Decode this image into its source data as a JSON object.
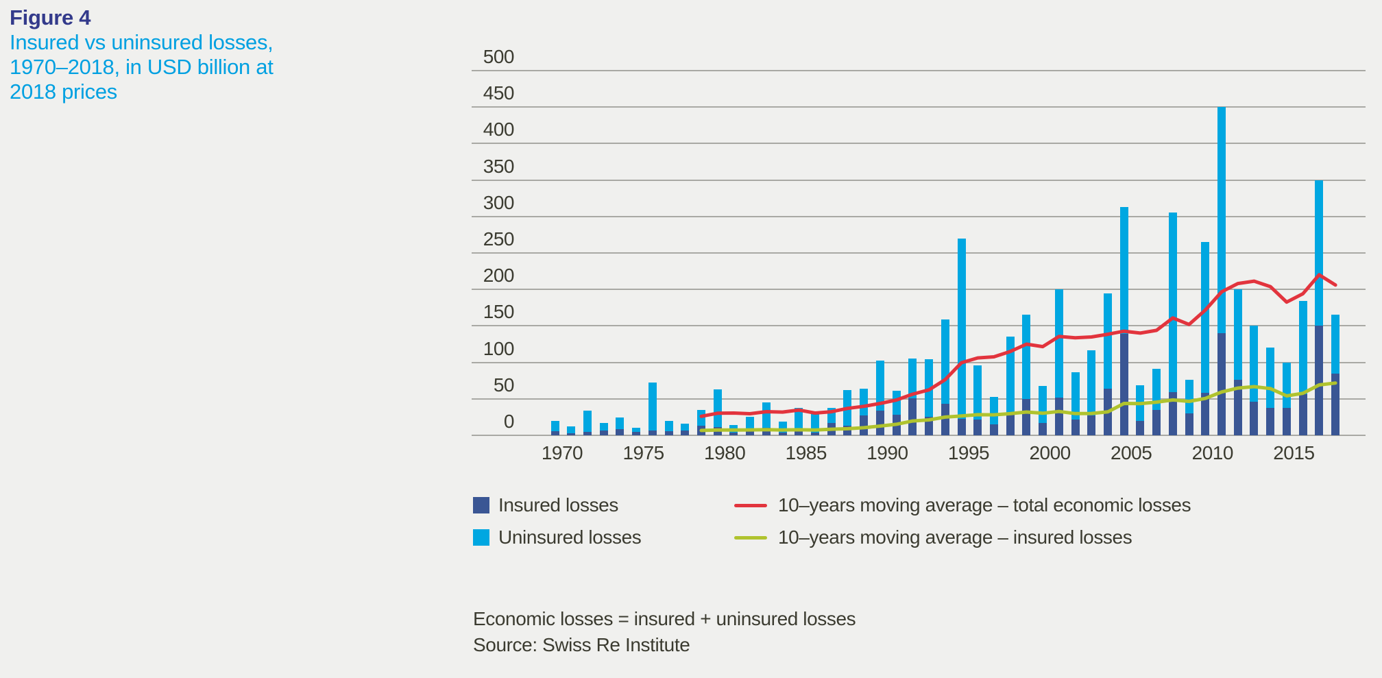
{
  "figure": {
    "label": "Figure 4",
    "title_lines": [
      "Insured vs uninsured losses,",
      "1970–2018, in USD billion at",
      "2018 prices"
    ]
  },
  "legend": {
    "items": [
      {
        "label": "Insured losses",
        "swatch": "square",
        "color": "#3a5694"
      },
      {
        "label": "Uninsured losses",
        "swatch": "square",
        "color": "#00a7e1"
      },
      {
        "label": "10–years moving average – total economic losses",
        "swatch": "line",
        "color": "#e2343d"
      },
      {
        "label": "10–years moving average – insured losses",
        "swatch": "line",
        "color": "#b0c32e"
      }
    ]
  },
  "footnotes": [
    "Economic losses = insured + uninsured losses",
    "Source: Swiss Re Institute"
  ],
  "chart_data": {
    "type": "bar",
    "subtype": "stacked-bars-with-moving-average-lines",
    "title": "Insured vs uninsured losses, 1970–2018, in USD billion at 2018 prices",
    "xlabel": "",
    "ylabel": "USD billion at 2018 prices",
    "ylim": [
      0,
      500
    ],
    "ytick_step": 50,
    "yticks": [
      0,
      50,
      100,
      150,
      200,
      250,
      300,
      350,
      400,
      450,
      500
    ],
    "xticks": [
      1970,
      1975,
      1980,
      1985,
      1990,
      1995,
      2000,
      2005,
      2010,
      2015
    ],
    "grid": true,
    "legend_position": "bottom",
    "years": [
      1970,
      1971,
      1972,
      1973,
      1974,
      1975,
      1976,
      1977,
      1978,
      1979,
      1980,
      1981,
      1982,
      1983,
      1984,
      1985,
      1986,
      1987,
      1988,
      1989,
      1990,
      1991,
      1992,
      1993,
      1994,
      1995,
      1996,
      1997,
      1998,
      1999,
      2000,
      2001,
      2002,
      2003,
      2004,
      2005,
      2006,
      2007,
      2008,
      2009,
      2010,
      2011,
      2012,
      2013,
      2014,
      2015,
      2016,
      2017,
      2018
    ],
    "series": [
      {
        "name": "Insured losses",
        "role": "bar-bottom-segment",
        "color": "#3a5694",
        "values": [
          6,
          3,
          5,
          7,
          8,
          5,
          7,
          6,
          7,
          13,
          11,
          4,
          6,
          10,
          4,
          8,
          4,
          17,
          13,
          27,
          34,
          28,
          51,
          25,
          43,
          23,
          22,
          15,
          29,
          50,
          17,
          52,
          22,
          27,
          64,
          139,
          20,
          35,
          59,
          30,
          58,
          140,
          76,
          46,
          38,
          38,
          56,
          150,
          85
        ]
      },
      {
        "name": "Uninsured losses",
        "role": "bar-top-segment",
        "color": "#00a7e1",
        "values": [
          14,
          9,
          29,
          10,
          16,
          5,
          65,
          14,
          9,
          22,
          52,
          10,
          19,
          35,
          15,
          30,
          26,
          21,
          49,
          37,
          68,
          33,
          54,
          79,
          116,
          247,
          74,
          38,
          106,
          115,
          51,
          148,
          64,
          90,
          131,
          174,
          49,
          56,
          246,
          46,
          207,
          310,
          124,
          104,
          82,
          62,
          128,
          200,
          80
        ]
      },
      {
        "name": "Total economic losses",
        "role": "bar-total",
        "note": "economic = insured + uninsured",
        "values": [
          20,
          12,
          34,
          17,
          24,
          10,
          72,
          20,
          16,
          35,
          63,
          14,
          25,
          45,
          19,
          38,
          30,
          38,
          62,
          64,
          102,
          61,
          105,
          104,
          159,
          270,
          96,
          53,
          135,
          165,
          68,
          200,
          86,
          117,
          195,
          313,
          69,
          91,
          305,
          76,
          265,
          450,
          200,
          150,
          120,
          100,
          184,
          350,
          165
        ]
      },
      {
        "name": "10–years moving average – total economic losses",
        "role": "line",
        "color": "#e2343d",
        "derived": "trailing 10-year mean of Total economic losses, plotted 1979–2018"
      },
      {
        "name": "10–years moving average – insured losses",
        "role": "line",
        "color": "#b0c32e",
        "derived": "trailing 10-year mean of Insured losses, plotted 1979–2018"
      }
    ],
    "colors": {
      "background": "#f0f0ee",
      "gridline": "#a9a9a4",
      "insured": "#3a5694",
      "uninsured": "#00a7e1",
      "ma_total": "#e2343d",
      "ma_insured": "#b0c32e",
      "text": "#3b3b30",
      "figure_label": "#333a8b",
      "title_accent": "#00a0e1"
    }
  }
}
